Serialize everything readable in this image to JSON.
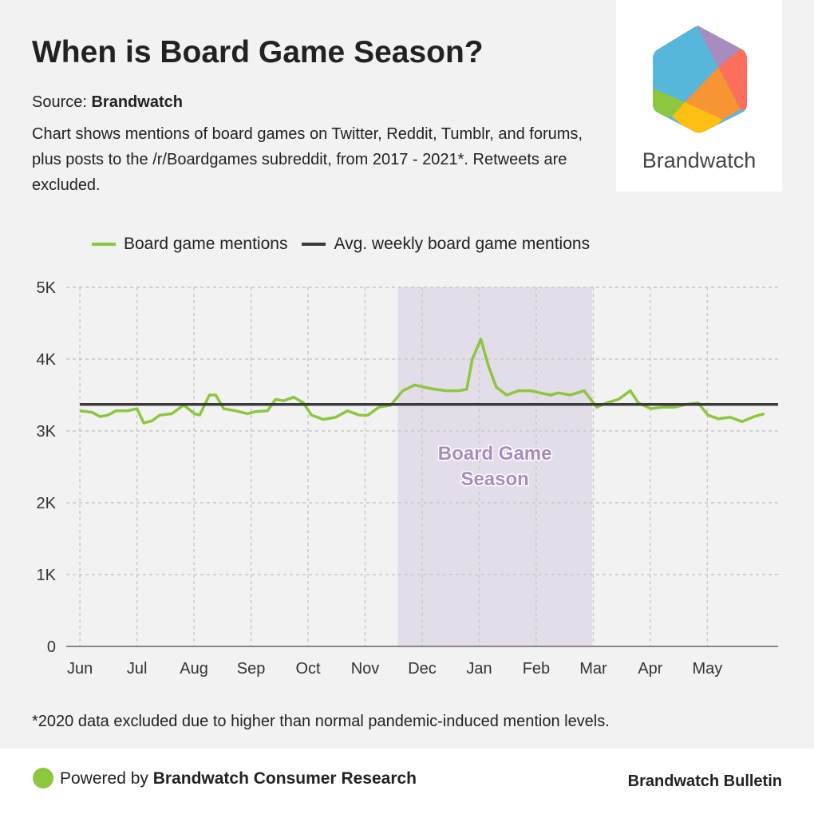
{
  "header": {
    "title": "When is Board Game Season?",
    "source_label": "Source: ",
    "source_name": "Brandwatch",
    "description": "Chart shows mentions of board games on Twitter, Reddit, Tumblr, and forums, plus posts to the /r/Boardgames subreddit, from 2017 - 2021*. Retweets are excluded."
  },
  "logo": {
    "text": "Brandwatch"
  },
  "footer": {
    "note": "*2020 data excluded due to higher than normal pandemic-induced mention levels.",
    "powered_prefix": "Powered by ",
    "powered_name": "Brandwatch Consumer Research",
    "bulletin": "Brandwatch Bulletin"
  },
  "colors": {
    "series": "#8dc63f",
    "avg": "#3a3a3c",
    "season": "#e3dde9",
    "season_text": "#a68bbf",
    "grid": "#c8c8c8"
  },
  "chart_data": {
    "type": "line",
    "title": "When is Board Game Season?",
    "xlabel": "",
    "ylabel": "",
    "xlim": [
      -0.24,
      12.24
    ],
    "ylim": [
      0,
      5
    ],
    "y_ticks": [
      {
        "v": 0,
        "label": "0"
      },
      {
        "v": 1,
        "label": "1K"
      },
      {
        "v": 2,
        "label": "2K"
      },
      {
        "v": 3,
        "label": "3K"
      },
      {
        "v": 4,
        "label": "4K"
      },
      {
        "v": 5,
        "label": "5K"
      }
    ],
    "x_ticks": [
      {
        "v": 0,
        "label": "Jun"
      },
      {
        "v": 1,
        "label": "Jul"
      },
      {
        "v": 2,
        "label": "Aug"
      },
      {
        "v": 3,
        "label": "Sep"
      },
      {
        "v": 4,
        "label": "Oct"
      },
      {
        "v": 5,
        "label": "Nov"
      },
      {
        "v": 6,
        "label": "Dec"
      },
      {
        "v": 7,
        "label": "Jan"
      },
      {
        "v": 8,
        "label": "Feb"
      },
      {
        "v": 9,
        "label": "Mar"
      },
      {
        "v": 10,
        "label": "Apr"
      },
      {
        "v": 11,
        "label": "May"
      }
    ],
    "grid": true,
    "legend_position": "top",
    "season": {
      "start": 5.57,
      "end": 8.98,
      "label_line1": "Board Game",
      "label_line2": "Season"
    },
    "series": [
      {
        "name": "Board game mentions",
        "unit": "K",
        "points": [
          [
            0,
            3.28
          ],
          [
            0.21,
            3.26
          ],
          [
            0.35,
            3.2
          ],
          [
            0.49,
            3.22
          ],
          [
            0.63,
            3.28
          ],
          [
            0.84,
            3.28
          ],
          [
            1.0,
            3.31
          ],
          [
            1.12,
            3.11
          ],
          [
            1.26,
            3.14
          ],
          [
            1.4,
            3.22
          ],
          [
            1.61,
            3.24
          ],
          [
            1.82,
            3.36
          ],
          [
            2.01,
            3.24
          ],
          [
            2.1,
            3.22
          ],
          [
            2.27,
            3.5
          ],
          [
            2.38,
            3.5
          ],
          [
            2.52,
            3.31
          ],
          [
            2.73,
            3.28
          ],
          [
            2.94,
            3.24
          ],
          [
            3.08,
            3.27
          ],
          [
            3.29,
            3.28
          ],
          [
            3.43,
            3.44
          ],
          [
            3.57,
            3.42
          ],
          [
            3.75,
            3.47
          ],
          [
            3.92,
            3.39
          ],
          [
            4.06,
            3.22
          ],
          [
            4.27,
            3.16
          ],
          [
            4.48,
            3.19
          ],
          [
            4.69,
            3.28
          ],
          [
            4.9,
            3.22
          ],
          [
            5.05,
            3.22
          ],
          [
            5.24,
            3.33
          ],
          [
            5.45,
            3.36
          ],
          [
            5.66,
            3.56
          ],
          [
            5.87,
            3.64
          ],
          [
            6.03,
            3.61
          ],
          [
            6.22,
            3.58
          ],
          [
            6.43,
            3.56
          ],
          [
            6.64,
            3.56
          ],
          [
            6.78,
            3.58
          ],
          [
            6.88,
            4.0
          ],
          [
            7.03,
            4.28
          ],
          [
            7.16,
            3.91
          ],
          [
            7.3,
            3.61
          ],
          [
            7.48,
            3.5
          ],
          [
            7.69,
            3.56
          ],
          [
            7.9,
            3.56
          ],
          [
            8.07,
            3.53
          ],
          [
            8.25,
            3.5
          ],
          [
            8.39,
            3.53
          ],
          [
            8.6,
            3.5
          ],
          [
            8.84,
            3.56
          ],
          [
            9.06,
            3.33
          ],
          [
            9.23,
            3.39
          ],
          [
            9.44,
            3.44
          ],
          [
            9.65,
            3.56
          ],
          [
            9.79,
            3.39
          ],
          [
            10.01,
            3.31
          ],
          [
            10.21,
            3.33
          ],
          [
            10.42,
            3.33
          ],
          [
            10.63,
            3.37
          ],
          [
            10.84,
            3.39
          ],
          [
            11.01,
            3.22
          ],
          [
            11.19,
            3.17
          ],
          [
            11.4,
            3.19
          ],
          [
            11.61,
            3.13
          ],
          [
            11.82,
            3.2
          ],
          [
            12.0,
            3.24
          ]
        ]
      },
      {
        "name": "Avg. weekly board game mentions",
        "unit": "K",
        "value": 3.37
      }
    ]
  }
}
